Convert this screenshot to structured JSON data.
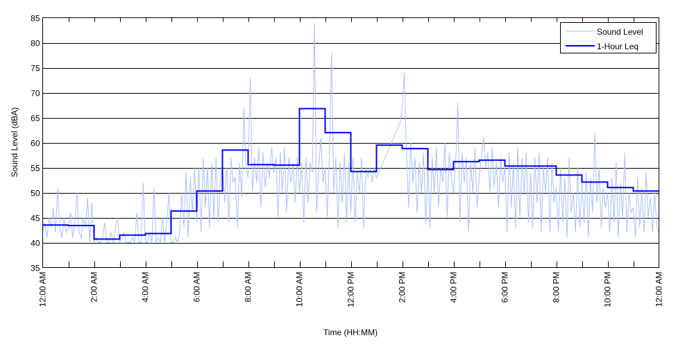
{
  "chart_data": {
    "type": "line",
    "title": "",
    "xlabel": "Time (HH:MM)",
    "ylabel": "Sound Level (dBA)",
    "xlim_hours": [
      0,
      24
    ],
    "ylim": [
      35,
      85
    ],
    "yticks": [
      35,
      40,
      45,
      50,
      55,
      60,
      65,
      70,
      75,
      80,
      85
    ],
    "xtick_labels": [
      "12:00 AM",
      "2:00 AM",
      "4:00 AM",
      "6:00 AM",
      "8:00 AM",
      "10:00 AM",
      "12:00 PM",
      "2:00 PM",
      "4:00 PM",
      "6:00 PM",
      "8:00 PM",
      "10:00 PM",
      "12:00 AM"
    ],
    "grid": "horizontal",
    "legend_position": "top-right",
    "series": [
      {
        "name": "Sound Level",
        "color": "#a8c0ff",
        "interval_minutes": 5,
        "values": [
          42,
          44,
          41,
          45,
          43,
          47,
          42,
          51,
          43,
          41,
          45,
          42,
          43,
          46,
          41,
          44,
          50,
          42,
          41,
          45,
          43,
          49,
          40,
          48,
          40,
          41,
          40,
          40,
          41,
          44,
          40,
          40,
          42,
          40,
          43,
          45,
          40,
          41,
          42,
          40,
          40,
          40,
          41,
          40,
          46,
          40,
          40,
          52,
          40,
          40,
          42,
          40,
          51,
          40,
          41,
          40,
          45,
          40,
          44,
          50,
          40,
          40,
          41,
          40,
          42,
          50,
          43,
          54,
          41,
          53,
          46,
          55,
          44,
          55,
          42,
          57,
          47,
          55,
          43,
          56,
          45,
          57,
          44,
          52,
          56,
          48,
          55,
          44,
          57,
          52,
          53,
          43,
          56,
          49,
          67,
          55,
          53,
          73,
          50,
          57,
          52,
          59,
          47,
          58,
          51,
          56,
          53,
          59,
          54,
          57,
          45,
          58,
          50,
          59,
          46,
          57,
          52,
          56,
          48,
          57,
          50,
          56,
          44,
          57,
          48,
          56,
          54,
          84,
          46,
          55,
          61,
          52,
          55,
          45,
          58,
          78,
          50,
          57,
          43,
          56,
          48,
          58,
          44,
          56,
          46,
          57,
          44,
          54,
          50,
          57,
          43,
          55,
          53,
          55,
          52,
          55,
          53,
          54,
          55,
          56,
          57,
          58,
          59,
          60,
          61,
          62,
          63,
          64,
          67,
          74,
          58,
          47,
          60,
          52,
          57,
          46,
          56,
          50,
          58,
          44,
          55,
          43,
          57,
          50,
          59,
          47,
          55,
          52,
          60,
          45,
          58,
          53,
          50,
          56,
          68,
          44,
          58,
          52,
          57,
          42,
          56,
          50,
          59,
          47,
          53,
          57,
          61,
          55,
          58,
          50,
          59,
          51,
          56,
          47,
          57,
          52,
          55,
          42,
          58,
          47,
          56,
          43,
          59,
          45,
          57,
          50,
          58,
          44,
          54,
          43,
          57,
          48,
          58,
          42,
          55,
          50,
          57,
          42,
          56,
          48,
          51,
          42,
          55,
          44,
          53,
          41,
          57,
          46,
          50,
          42,
          55,
          43,
          52,
          44,
          54,
          41,
          53,
          46,
          62,
          48,
          55,
          43,
          51,
          47,
          50,
          42,
          53,
          44,
          56,
          41,
          52,
          45,
          58,
          42,
          50,
          46,
          47,
          41,
          53,
          43,
          51,
          42,
          54,
          45,
          49,
          42,
          50,
          43,
          42
        ]
      },
      {
        "name": "1-Hour Leq",
        "color": "#0000ff",
        "interval_minutes": 60,
        "values": [
          43.5,
          43.4,
          40.7,
          41.5,
          41.8,
          46.3,
          50.3,
          58.5,
          55.6,
          55.5,
          66.8,
          62.0,
          54.2,
          59.5,
          58.8,
          54.6,
          56.2,
          56.5,
          55.3,
          55.3,
          53.5,
          52.1,
          51.0,
          50.3
        ]
      }
    ]
  }
}
